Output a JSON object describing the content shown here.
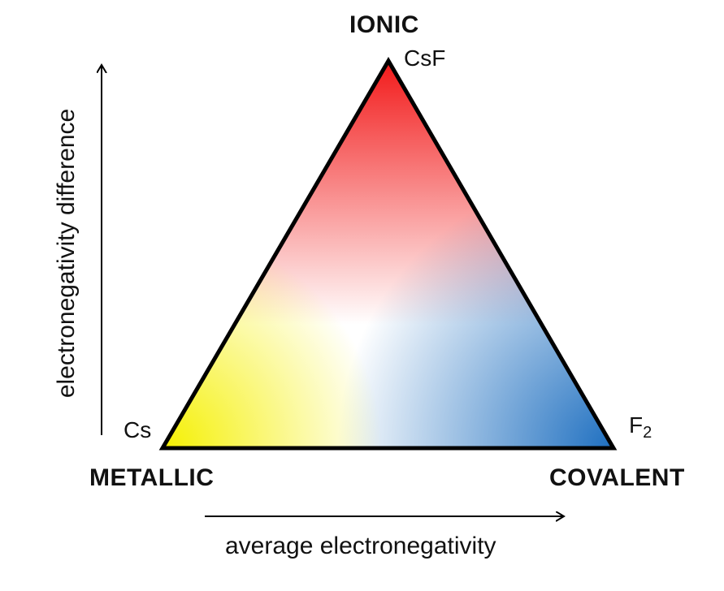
{
  "diagram": {
    "vertices": {
      "top": {
        "name": "IONIC",
        "example": "CsF"
      },
      "left": {
        "name": "METALLIC",
        "example": "Cs"
      },
      "right": {
        "name": "COVALENT",
        "example_base": "F",
        "example_subscript": "2"
      }
    },
    "axes": {
      "x_label": "average electronegativity",
      "y_label": "electronegativity difference"
    },
    "colors": {
      "ionic": "#f21a1a",
      "metallic": "#f5f000",
      "covalent": "#1e6fc0",
      "center": "#ffffff",
      "outline": "#000000"
    }
  }
}
